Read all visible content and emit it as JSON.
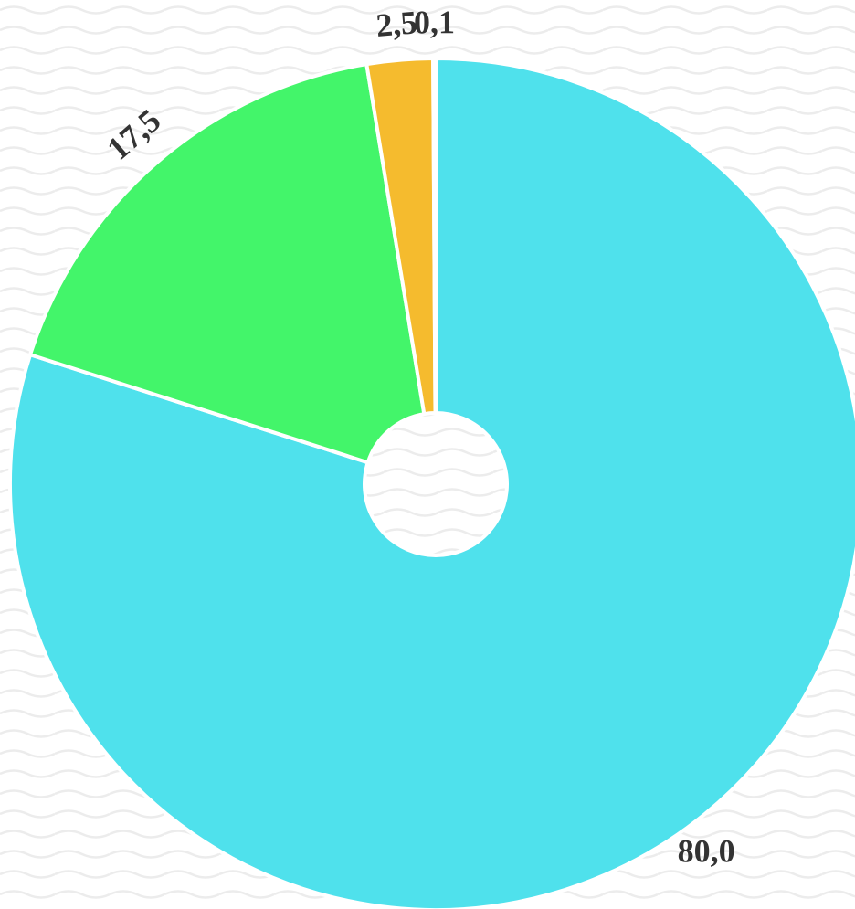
{
  "chart_data": {
    "type": "pie",
    "values": [
      80,
      17.5,
      2.5,
      0.1
    ],
    "value_labels": [
      "80,0",
      "17,5",
      "2,5",
      "0,1"
    ],
    "colors": [
      "#4fe1ec",
      "#43f56a",
      "#f5bb2e",
      "#d876d8"
    ],
    "donut": true
  }
}
